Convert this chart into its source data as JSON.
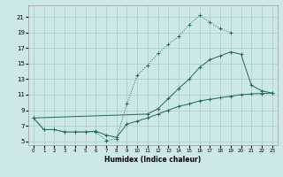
{
  "xlabel": "Humidex (Indice chaleur)",
  "bg_color": "#cce8e8",
  "grid_color": "#aacccc",
  "line_color": "#1a6b5a",
  "xlim": [
    -0.5,
    23.5
  ],
  "ylim": [
    4.5,
    22.5
  ],
  "yticks": [
    5,
    7,
    9,
    11,
    13,
    15,
    17,
    19,
    21
  ],
  "xticks": [
    0,
    1,
    2,
    3,
    4,
    5,
    6,
    7,
    8,
    9,
    10,
    11,
    12,
    13,
    14,
    15,
    16,
    17,
    18,
    19,
    20,
    21,
    22,
    23
  ],
  "line1_x": [
    0,
    1,
    2,
    3,
    4,
    5,
    6,
    7,
    8,
    9,
    10,
    11,
    12,
    13,
    14,
    15,
    16,
    17,
    18,
    19
  ],
  "line1_y": [
    8.0,
    6.5,
    6.5,
    6.2,
    6.2,
    6.2,
    6.2,
    5.1,
    5.3,
    9.8,
    13.5,
    14.8,
    16.3,
    17.5,
    18.5,
    20.0,
    21.2,
    20.3,
    19.5,
    19.0
  ],
  "line2_x": [
    0,
    11,
    12,
    13,
    14,
    15,
    16,
    17,
    18,
    19,
    20,
    21,
    22,
    23
  ],
  "line2_y": [
    8.0,
    8.5,
    9.2,
    10.5,
    11.8,
    13.0,
    14.5,
    15.5,
    16.0,
    16.5,
    16.2,
    12.2,
    11.5,
    11.2
  ],
  "line3_x": [
    0,
    1,
    2,
    3,
    4,
    5,
    6,
    7,
    8,
    9,
    10,
    11,
    12,
    13,
    14,
    15,
    16,
    17,
    18,
    19,
    20,
    21,
    22,
    23
  ],
  "line3_y": [
    8.0,
    6.5,
    6.5,
    6.2,
    6.2,
    6.2,
    6.3,
    5.8,
    5.5,
    7.2,
    7.6,
    8.0,
    8.5,
    9.0,
    9.5,
    9.8,
    10.2,
    10.4,
    10.6,
    10.8,
    11.0,
    11.1,
    11.15,
    11.2
  ]
}
